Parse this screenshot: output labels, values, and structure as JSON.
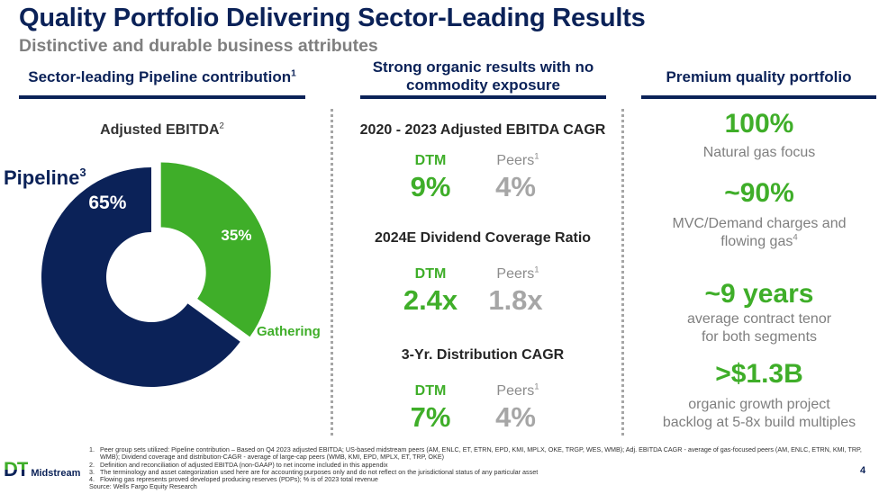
{
  "header": {
    "title": "Quality Portfolio Delivering Sector-Leading Results",
    "subtitle": "Distinctive and durable business attributes"
  },
  "columns": {
    "left": {
      "heading": "Sector-leading Pipeline contribution",
      "heading_sup": "1"
    },
    "middle": {
      "heading_line1": "Strong organic results with no",
      "heading_line2": "commodity exposure"
    },
    "right": {
      "heading": "Premium quality portfolio"
    }
  },
  "chart_data": {
    "type": "pie",
    "variant": "donut",
    "title": "Adjusted EBITDA",
    "title_sup": "2",
    "categories": [
      "Pipeline",
      "Gathering"
    ],
    "values": [
      65,
      35
    ],
    "unit": "%",
    "value_labels": [
      "65%",
      "35%"
    ],
    "category_labels": [
      {
        "text": "Pipeline",
        "sup": "3"
      },
      {
        "text": "Gathering",
        "sup": ""
      }
    ],
    "colors": [
      "#0b2258",
      "#3fae29"
    ],
    "exploded": [
      "Gathering"
    ],
    "legend": "none"
  },
  "metrics": [
    {
      "title": "2020 - 2023 Adjusted EBITDA CAGR",
      "dtm_label": "DTM",
      "peers_label": "Peers",
      "peers_sup": "1",
      "dtm_value": "9%",
      "peers_value": "4%"
    },
    {
      "title": "2024E Dividend Coverage Ratio",
      "dtm_label": "DTM",
      "peers_label": "Peers",
      "peers_sup": "1",
      "dtm_value": "2.4x",
      "peers_value": "1.8x"
    },
    {
      "title": "3-Yr. Distribution CAGR",
      "dtm_label": "DTM",
      "peers_label": "Peers",
      "peers_sup": "1",
      "dtm_value": "7%",
      "peers_value": "4%"
    }
  ],
  "kpis": [
    {
      "value": "100%",
      "desc_line1": "Natural gas focus",
      "desc_line2": "",
      "desc_sup": ""
    },
    {
      "value": "~90%",
      "desc_line1": "MVC/Demand charges and",
      "desc_line2": "flowing gas",
      "desc_sup": "4"
    },
    {
      "value": "~9 years",
      "desc_line1": "average contract tenor",
      "desc_line2": "for both segments",
      "desc_sup": ""
    },
    {
      "value": ">$1.3B",
      "desc_line1": "organic growth project",
      "desc_line2": "backlog at 5-8x build multiples",
      "desc_sup": ""
    }
  ],
  "footnotes": [
    {
      "num": "1.",
      "text": "Peer group sets utilized: Pipeline contribution – Based on Q4 2023 adjusted EBITDA; US-based midstream peers (AM, ENLC, ET, ETRN, EPD, KMI, MPLX, OKE, TRGP, WES, WMB); Adj. EBITDA CAGR - average of gas-focused peers (AM, ENLC, ETRN, KMI, TRP, WMB); Dividend coverage and distribution-CAGR - average of large-cap peers (WMB, KMI, EPD, MPLX, ET, TRP, OKE)"
    },
    {
      "num": "2.",
      "text": "Definition and reconciliation of adjusted EBITDA (non-GAAP) to net income included in this appendix"
    },
    {
      "num": "3.",
      "text": "The terminology and asset categorization used here are for accounting purposes only and do not reflect on the jurisdictional status of any particular asset"
    },
    {
      "num": "4.",
      "text": "Flowing gas represents proved developed producing reserves (PDPs); % is of 2023 total revenue"
    }
  ],
  "source": "Source: Wells Fargo Equity Research",
  "page_number": "4",
  "logo": {
    "mark": "DT",
    "name": "Midstream"
  }
}
